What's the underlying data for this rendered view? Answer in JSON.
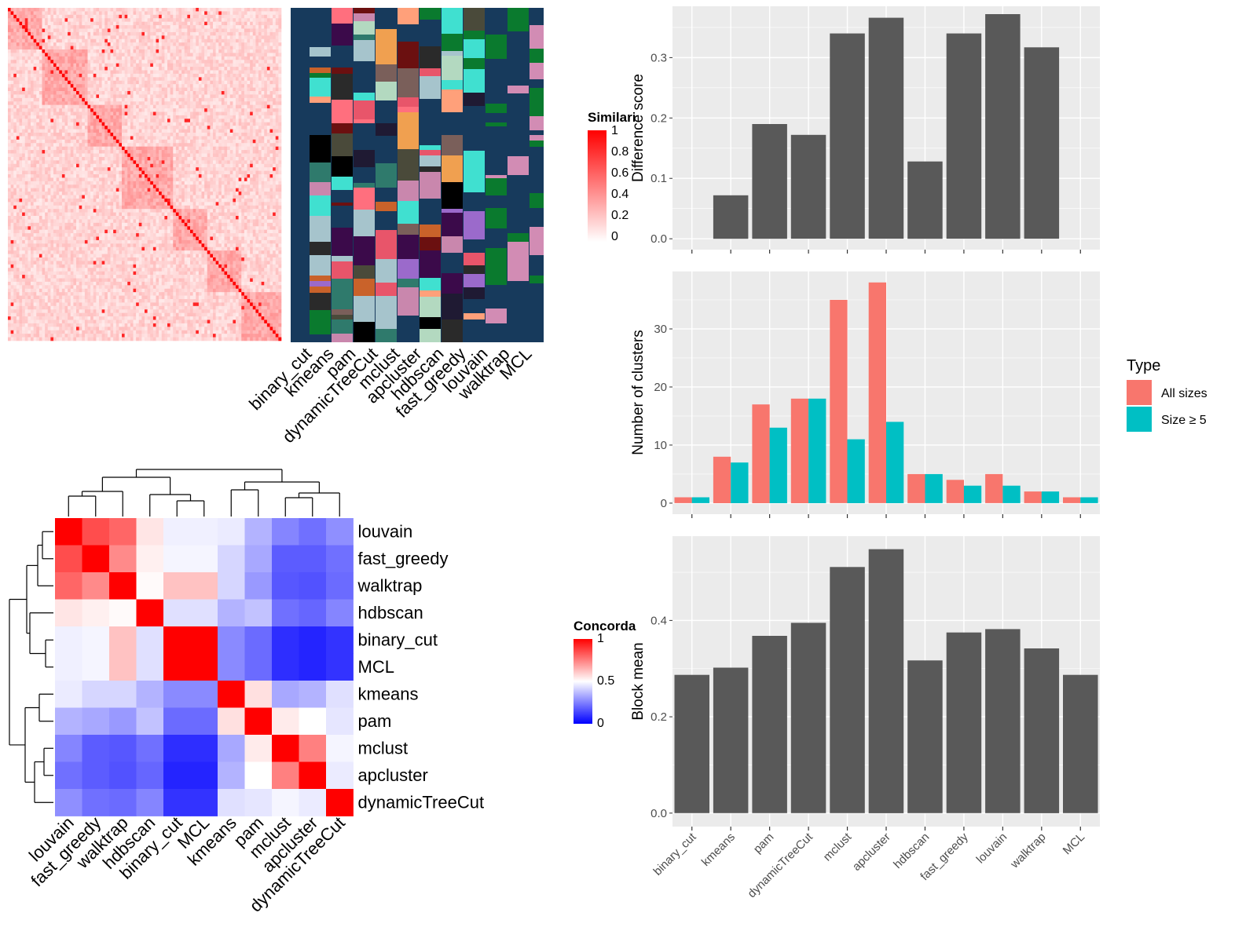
{
  "methods": [
    "binary_cut",
    "kmeans",
    "pam",
    "dynamicTreeCut",
    "mclust",
    "apcluster",
    "hdbscan",
    "fast_greedy",
    "louvain",
    "walktrap",
    "MCL"
  ],
  "similarity_legend": {
    "title": "Similarity",
    "ticks": [
      "1",
      "0.8",
      "0.6",
      "0.4",
      "0.2",
      "0"
    ]
  },
  "concordance_legend": {
    "title": "Concordance",
    "ticks": [
      "1",
      "0.5",
      "0"
    ]
  },
  "concordance_order": [
    "louvain",
    "fast_greedy",
    "walktrap",
    "hdbscan",
    "binary_cut",
    "MCL",
    "kmeans",
    "pam",
    "mclust",
    "apcluster",
    "dynamicTreeCut"
  ],
  "chart_data": [
    {
      "type": "bar",
      "categories": [
        "binary_cut",
        "kmeans",
        "pam",
        "dynamicTreeCut",
        "mclust",
        "apcluster",
        "hdbscan",
        "fast_greedy",
        "louvain",
        "walktrap",
        "MCL"
      ],
      "values": [
        0,
        0.072,
        0.19,
        0.172,
        0.34,
        0.366,
        0.128,
        0.34,
        0.372,
        0.317,
        0
      ],
      "ylabel": "Difference score",
      "yticks": [
        "0.0",
        "0.1",
        "0.2",
        "0.3"
      ],
      "ylim": [
        -0.018,
        0.385
      ],
      "color": "#595959"
    },
    {
      "type": "bar",
      "categories": [
        "binary_cut",
        "kmeans",
        "pam",
        "dynamicTreeCut",
        "mclust",
        "apcluster",
        "hdbscan",
        "fast_greedy",
        "louvain",
        "walktrap",
        "MCL"
      ],
      "series": [
        {
          "name": "All sizes",
          "values": [
            1,
            8,
            17,
            18,
            35,
            38,
            5,
            4,
            5,
            2,
            1
          ],
          "color": "#F8766D"
        },
        {
          "name": "Size ≥ 5",
          "values": [
            1,
            7,
            13,
            18,
            11,
            14,
            5,
            3,
            3,
            2,
            1
          ],
          "color": "#00BFC4"
        }
      ],
      "ylabel": "Number of clusters",
      "yticks": [
        "0",
        "10",
        "20",
        "30"
      ],
      "ylim": [
        -1.9,
        40
      ],
      "legend": {
        "title": "Type",
        "position": "right"
      }
    },
    {
      "type": "bar",
      "categories": [
        "binary_cut",
        "kmeans",
        "pam",
        "dynamicTreeCut",
        "mclust",
        "apcluster",
        "hdbscan",
        "fast_greedy",
        "louvain",
        "walktrap",
        "MCL"
      ],
      "values": [
        0.287,
        0.302,
        0.368,
        0.395,
        0.511,
        0.548,
        0.317,
        0.375,
        0.382,
        0.342,
        0.287
      ],
      "ylabel": "Block mean",
      "yticks": [
        "0.0",
        "0.2",
        "0.4"
      ],
      "ylim": [
        -0.028,
        0.575
      ],
      "color": "#595959"
    },
    {
      "type": "heatmap",
      "rows": [
        "louvain",
        "fast_greedy",
        "walktrap",
        "hdbscan",
        "binary_cut",
        "MCL",
        "kmeans",
        "pam",
        "mclust",
        "apcluster",
        "dynamicTreeCut"
      ],
      "cols": [
        "louvain",
        "fast_greedy",
        "walktrap",
        "hdbscan",
        "binary_cut",
        "MCL",
        "kmeans",
        "pam",
        "mclust",
        "apcluster",
        "dynamicTreeCut"
      ],
      "values": [
        [
          1.0,
          0.85,
          0.8,
          0.55,
          0.47,
          0.47,
          0.46,
          0.35,
          0.26,
          0.22,
          0.28
        ],
        [
          0.85,
          1.0,
          0.73,
          0.53,
          0.48,
          0.48,
          0.42,
          0.33,
          0.18,
          0.18,
          0.22
        ],
        [
          0.8,
          0.73,
          1.0,
          0.51,
          0.62,
          0.62,
          0.42,
          0.3,
          0.17,
          0.16,
          0.21
        ],
        [
          0.55,
          0.53,
          0.51,
          1.0,
          0.44,
          0.44,
          0.35,
          0.38,
          0.22,
          0.2,
          0.26
        ],
        [
          0.47,
          0.48,
          0.62,
          0.44,
          1.0,
          1.0,
          0.27,
          0.21,
          0.09,
          0.07,
          0.1
        ],
        [
          0.47,
          0.48,
          0.62,
          0.44,
          1.0,
          1.0,
          0.27,
          0.21,
          0.09,
          0.07,
          0.1
        ],
        [
          0.46,
          0.42,
          0.42,
          0.35,
          0.27,
          0.27,
          1.0,
          0.56,
          0.33,
          0.35,
          0.44
        ],
        [
          0.35,
          0.33,
          0.3,
          0.38,
          0.21,
          0.21,
          0.56,
          1.0,
          0.54,
          0.5,
          0.45
        ],
        [
          0.26,
          0.18,
          0.17,
          0.22,
          0.09,
          0.09,
          0.33,
          0.54,
          1.0,
          0.75,
          0.48
        ],
        [
          0.22,
          0.18,
          0.16,
          0.2,
          0.07,
          0.07,
          0.35,
          0.5,
          0.75,
          1.0,
          0.46
        ],
        [
          0.28,
          0.22,
          0.21,
          0.26,
          0.1,
          0.1,
          0.44,
          0.45,
          0.48,
          0.46,
          1.0
        ]
      ]
    }
  ]
}
